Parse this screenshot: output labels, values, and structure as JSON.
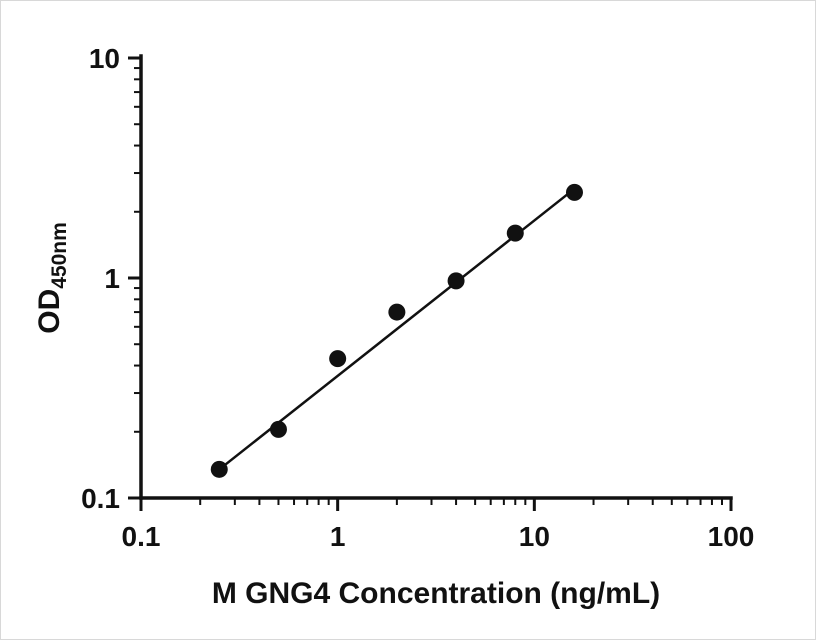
{
  "chart_data": {
    "type": "scatter",
    "title": "",
    "xlabel": "M GNG4 Concentration (ng/mL)",
    "ylabel_main": "OD",
    "ylabel_sub": "450nm",
    "x_scale": "log",
    "y_scale": "log",
    "xlim": [
      0.1,
      100
    ],
    "ylim": [
      0.1,
      10
    ],
    "x_ticks": [
      0.1,
      1,
      10,
      100
    ],
    "x_tick_labels": [
      "0.1",
      "1",
      "10",
      "100"
    ],
    "y_ticks": [
      0.1,
      1,
      10
    ],
    "y_tick_labels": [
      "0.1",
      "1",
      "10"
    ],
    "grid": false,
    "legend": "none",
    "points": {
      "x": [
        0.25,
        0.5,
        1,
        2,
        4,
        8,
        16
      ],
      "y": [
        0.135,
        0.205,
        0.43,
        0.7,
        0.97,
        1.6,
        2.45
      ]
    },
    "trendline": {
      "x": [
        0.24,
        16.5
      ],
      "y": [
        0.131,
        2.6
      ]
    },
    "marker_color": "#111111",
    "line_color": "#111111",
    "axis_color": "#111111"
  }
}
